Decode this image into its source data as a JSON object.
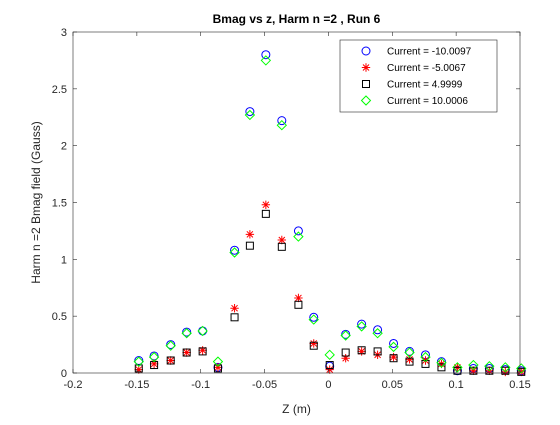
{
  "chart_data": {
    "type": "scatter",
    "title": "Bmag vs z, Harm n =2 , Run 6",
    "xlabel": "Z (m)",
    "ylabel": "Harm n =2 Bmag field (Gauss)",
    "xlim": [
      -0.2,
      0.15
    ],
    "ylim": [
      0,
      3
    ],
    "xticks": [
      "-0.2",
      "-0.15",
      "-0.1",
      "-0.05",
      "0",
      "0.05",
      "0.1",
      "0.15"
    ],
    "yticks": [
      "0",
      "0.5",
      "1",
      "1.5",
      "2",
      "2.5",
      "3"
    ],
    "grid": false,
    "legend_position": "top-right",
    "x": [
      -0.1485,
      -0.1365,
      -0.1235,
      -0.111,
      -0.0985,
      -0.0865,
      -0.0735,
      -0.0615,
      -0.049,
      -0.0365,
      -0.0235,
      -0.0115,
      0.001,
      0.0135,
      0.026,
      0.0385,
      0.051,
      0.0635,
      0.076,
      0.0885,
      0.101,
      0.1135,
      0.126,
      0.1385,
      0.151
    ],
    "series": [
      {
        "name": "Current = -10.0097",
        "marker": "circle",
        "color": "#0000ff",
        "values": [
          0.11,
          0.15,
          0.25,
          0.36,
          0.37,
          0.05,
          1.08,
          2.3,
          2.8,
          2.22,
          1.25,
          0.49,
          0.06,
          0.34,
          0.43,
          0.38,
          0.26,
          0.19,
          0.16,
          0.1,
          0.02,
          0.04,
          0.04,
          0.03,
          0.02
        ]
      },
      {
        "name": "Current = -5.0067",
        "marker": "star",
        "color": "#ff0000",
        "values": [
          0.03,
          0.08,
          0.11,
          0.18,
          0.2,
          0.05,
          0.57,
          1.22,
          1.48,
          1.17,
          0.66,
          0.26,
          0.03,
          0.13,
          0.19,
          0.16,
          0.14,
          0.12,
          0.11,
          0.08,
          0.05,
          0.02,
          0.02,
          0.01,
          0.01
        ]
      },
      {
        "name": "Current = 4.9999",
        "marker": "square",
        "color": "#000000",
        "values": [
          0.04,
          0.07,
          0.11,
          0.18,
          0.19,
          0.04,
          0.49,
          1.12,
          1.4,
          1.11,
          0.6,
          0.24,
          0.07,
          0.18,
          0.2,
          0.19,
          0.13,
          0.1,
          0.08,
          0.05,
          0.02,
          0.02,
          0.02,
          0.02,
          0.01
        ]
      },
      {
        "name": "Current = 10.0006",
        "marker": "diamond",
        "color": "#00ff00",
        "values": [
          0.1,
          0.14,
          0.24,
          0.35,
          0.37,
          0.1,
          1.06,
          2.27,
          2.75,
          2.18,
          1.2,
          0.47,
          0.16,
          0.33,
          0.41,
          0.35,
          0.23,
          0.18,
          0.14,
          0.09,
          0.05,
          0.07,
          0.06,
          0.05,
          0.04
        ]
      }
    ]
  }
}
